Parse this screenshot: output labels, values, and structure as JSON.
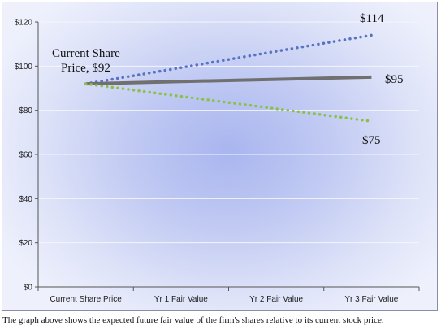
{
  "chart_data": {
    "type": "line",
    "categories": [
      "Current Share Price",
      "Yr 1 Fair Value",
      "Yr 2 Fair Value",
      "Yr 3 Fair Value"
    ],
    "ylim": [
      0,
      120
    ],
    "yticks": [
      0,
      20,
      40,
      60,
      80,
      100,
      120
    ],
    "ytick_labels": [
      "$0",
      "$20",
      "$40",
      "$60",
      "$80",
      "$100",
      "$120"
    ],
    "grid": true,
    "series": [
      {
        "values": [
          92,
          99.3,
          106.7,
          114
        ],
        "color": "#5a72c4",
        "style": "dotted"
      },
      {
        "values": [
          92,
          93,
          94,
          95
        ],
        "color": "#707070",
        "style": "solid"
      },
      {
        "values": [
          92,
          86.3,
          80.7,
          75
        ],
        "color": "#8dc04a",
        "style": "dotted"
      }
    ],
    "annotations": {
      "start_line1": "Current Share",
      "start_line2": "Price, $92",
      "high": "$114",
      "mid": "$95",
      "low": "$75"
    }
  },
  "caption": "The graph above shows the expected future fair value of the firm's shares relative to its current stock price."
}
